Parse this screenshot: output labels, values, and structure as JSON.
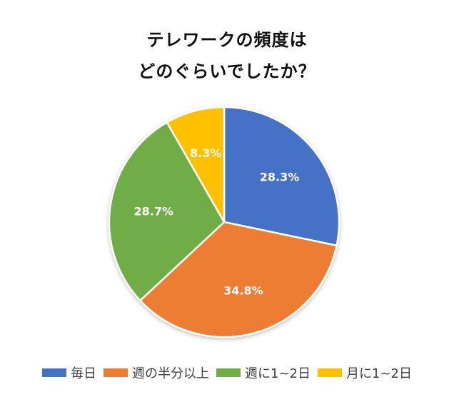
{
  "chart_data": {
    "type": "pie",
    "title_lines": [
      "テレワークの頻度は",
      "どのぐらいでしたか？"
    ],
    "categories": [
      "毎日",
      "週の半分以上",
      "週に1~2日",
      "月に1~2日"
    ],
    "values": [
      28.3,
      34.8,
      28.7,
      8.3
    ],
    "value_labels": [
      "28.3%",
      "34.8%",
      "28.7%",
      "8.3%"
    ],
    "colors": [
      "#4472C4",
      "#ED7D31",
      "#70AD47",
      "#FFC000"
    ],
    "legend_position": "bottom",
    "start_angle": "12 o'clock",
    "direction": "clockwise"
  }
}
